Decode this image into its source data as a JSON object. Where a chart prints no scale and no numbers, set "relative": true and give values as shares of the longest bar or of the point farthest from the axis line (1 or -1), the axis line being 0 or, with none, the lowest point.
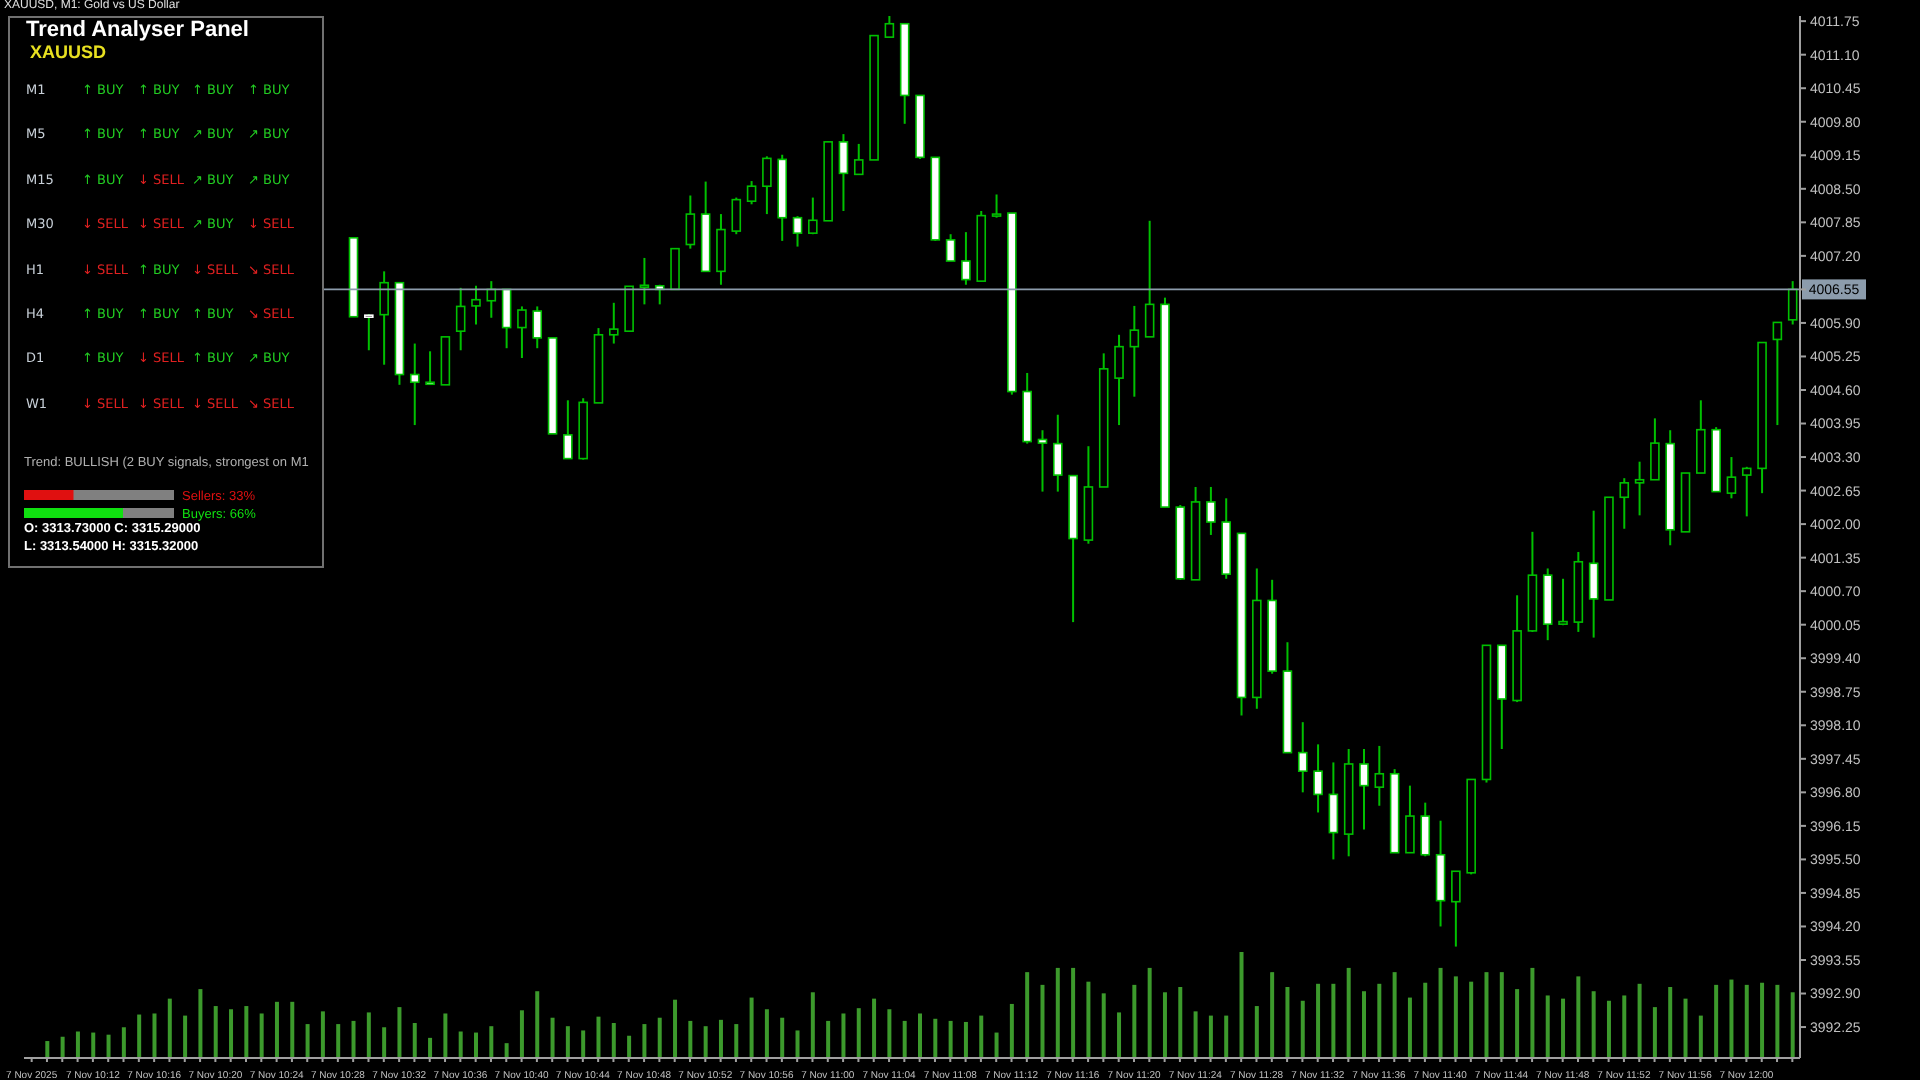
{
  "chart_data": [
    {
      "type": "candlestick",
      "title": "XAUUSD, M1: Gold vs US Dollar",
      "color": "#00c000",
      "colors": [
        null,
        null,
        null,
        null,
        null,
        null,
        null,
        null,
        null,
        null,
        null,
        null,
        null,
        null,
        null,
        null,
        null,
        null,
        null,
        null,
        null,
        "#ffffff",
        "#ffffff",
        "#00c000",
        "#ffffff",
        "#ffffff",
        "#ffffff",
        "#00c000",
        "#00c000",
        "#00c000",
        "#00c000",
        "#ffffff",
        "#00c000",
        "#ffffff",
        "#ffffff",
        "#ffffff",
        "#00c000",
        "#00c000",
        "#00c000",
        "#00c000",
        "#00c000",
        "#ffffff",
        "#00c000",
        "#00c000",
        "#ffffff",
        "#00c000",
        "#00c000",
        "#00c000",
        "#00c000",
        "#ffffff",
        "#ffffff",
        "#00c000",
        "#00c000",
        "#ffffff",
        "#00c000",
        "#00c000",
        "#00c000",
        "#ffffff",
        "#ffffff",
        "#ffffff",
        "#ffffff",
        "#ffffff",
        "#00c000",
        "#00c000",
        "#ffffff",
        "#ffffff",
        "#ffffff",
        "#ffffff",
        "#ffffff",
        "#00c000",
        "#00c000",
        "#00c000",
        "#00c000",
        "#00c000",
        "#ffffff",
        "#ffffff",
        "#00c000",
        "#ffffff",
        "#ffffff",
        "#ffffff",
        "#00c000",
        "#ffffff",
        "#ffffff",
        "#ffffff",
        "#ffffff",
        "#ffffff",
        "#00c000",
        "#ffffff",
        "#00c000",
        "#ffffff",
        "#00c000",
        "#ffffff",
        "#ffffff",
        "#00c000",
        "#00c000",
        "#00c000",
        "#ffffff",
        "#00c000",
        "#00c000",
        "#ffffff",
        "#00c000",
        "#00c000",
        "#ffffff",
        "#00c000",
        "#00c000",
        "#00c000",
        "#00c000",
        "#ffffff",
        "#00c000",
        "#00c000",
        "#ffffff",
        "#00c000",
        "#00c000",
        "#00c000",
        "#00c000",
        "#00c000"
      ],
      "categories": [
        "7 Nov 2025",
        null,
        null,
        null,
        "7 Nov 10:12",
        null,
        null,
        null,
        "7 Nov 10:16",
        null,
        null,
        null,
        "7 Nov 10:20",
        null,
        null,
        null,
        "7 Nov 10:24",
        null,
        null,
        null,
        "7 Nov 10:28",
        null,
        null,
        null,
        "7 Nov 10:32",
        null,
        null,
        null,
        "7 Nov 10:36",
        null,
        null,
        null,
        "7 Nov 10:40",
        null,
        null,
        null,
        "7 Nov 10:44",
        null,
        null,
        null,
        "7 Nov 10:48",
        null,
        null,
        null,
        "7 Nov 10:52",
        null,
        null,
        null,
        "7 Nov 10:56",
        null,
        null,
        null,
        "7 Nov 11:00",
        null,
        null,
        null,
        "7 Nov 11:04",
        null,
        null,
        null,
        "7 Nov 11:08",
        null,
        null,
        null,
        "7 Nov 11:12",
        null,
        null,
        null,
        "7 Nov 11:16",
        null,
        null,
        null,
        "7 Nov 11:20",
        null,
        null,
        null,
        "7 Nov 11:24",
        null,
        null,
        null,
        "7 Nov 11:28",
        null,
        null,
        null,
        "7 Nov 11:32",
        null,
        null,
        null,
        "7 Nov 11:36",
        null,
        null,
        null,
        "7 Nov 11:40",
        null,
        null,
        null,
        "7 Nov 11:44",
        null,
        null,
        null,
        "7 Nov 11:48",
        null,
        null,
        null,
        "7 Nov 11:52",
        null,
        null,
        null,
        "7 Nov 11:56",
        null,
        null,
        null,
        "7 Nov 12:00",
        null,
        null,
        null
      ],
      "ohlc": [
        null,
        null,
        null,
        null,
        null,
        null,
        null,
        null,
        null,
        null,
        null,
        null,
        null,
        null,
        null,
        null,
        null,
        null,
        null,
        null,
        null,
        [
          4007.55,
          4007.55,
          4006.02,
          4006.02
        ],
        [
          4006.05,
          4006.07,
          4005.37,
          4006.05
        ],
        [
          4006.06,
          4006.9,
          4005.09,
          4006.68
        ],
        [
          4006.68,
          4006.68,
          4004.7,
          4004.9
        ],
        [
          4004.9,
          4005.5,
          4003.92,
          4004.75
        ],
        [
          4004.75,
          4005.35,
          4004.7,
          4004.73
        ],
        [
          4004.7,
          4005.63,
          4004.7,
          4005.63
        ],
        [
          4005.74,
          4006.58,
          4005.37,
          4006.22
        ],
        [
          4006.23,
          4006.62,
          4005.87,
          4006.35
        ],
        [
          4006.33,
          4006.71,
          4006.0,
          4006.55
        ],
        [
          4006.55,
          4006.55,
          4005.41,
          4005.81
        ],
        [
          4005.81,
          4006.22,
          4005.22,
          4006.15
        ],
        [
          4006.13,
          4006.22,
          4005.41,
          4005.61
        ],
        [
          4005.61,
          4005.61,
          4003.75,
          4003.75
        ],
        [
          4003.73,
          4004.4,
          4003.27,
          4003.27
        ],
        [
          4003.27,
          4004.44,
          4003.25,
          4004.36
        ],
        [
          4004.35,
          4005.8,
          4004.35,
          4005.67
        ],
        [
          4005.67,
          4006.29,
          4005.5,
          4005.78
        ],
        [
          4005.74,
          4006.61,
          4005.74,
          4006.61
        ],
        [
          4006.61,
          4007.16,
          4006.26,
          4006.63
        ],
        [
          4006.62,
          4006.64,
          4006.26,
          4006.55
        ],
        [
          4006.55,
          4007.34,
          4006.55,
          4007.34
        ],
        [
          4007.42,
          4008.37,
          4007.34,
          4008.01
        ],
        [
          4008.01,
          4008.64,
          4006.9,
          4006.9
        ],
        [
          4006.9,
          4008.01,
          4006.64,
          4007.71
        ],
        [
          4007.68,
          4008.33,
          4007.62,
          4008.29
        ],
        [
          4008.26,
          4008.65,
          4008.2,
          4008.55
        ],
        [
          4008.55,
          4009.13,
          4008.01,
          4009.09
        ],
        [
          4009.07,
          4009.16,
          4007.49,
          4007.94
        ],
        [
          4007.94,
          4007.97,
          4007.38,
          4007.64
        ],
        [
          4007.64,
          4008.33,
          4007.62,
          4007.89
        ],
        [
          4007.88,
          4009.42,
          4007.88,
          4009.41
        ],
        [
          4009.41,
          4009.56,
          4008.07,
          4008.8
        ],
        [
          4008.78,
          4009.37,
          4008.77,
          4009.06
        ],
        [
          4009.06,
          4011.47,
          4009.06,
          4011.47
        ],
        [
          4011.44,
          4011.93,
          4011.44,
          4011.7
        ],
        [
          4011.7,
          4011.7,
          4009.76,
          4010.31
        ],
        [
          4010.31,
          4010.31,
          4009.08,
          4009.11
        ],
        [
          4009.11,
          4009.11,
          4007.49,
          4007.51
        ],
        [
          4007.51,
          4007.62,
          4007.1,
          4007.1
        ],
        [
          4007.1,
          4007.66,
          4006.64,
          4006.74
        ],
        [
          4006.71,
          4008.07,
          4006.71,
          4007.98
        ],
        [
          4007.98,
          4008.39,
          4007.94,
          4008.01
        ],
        [
          4008.03,
          4008.03,
          4004.51,
          4004.57
        ],
        [
          4004.57,
          4004.93,
          4003.56,
          4003.6
        ],
        [
          4003.64,
          4003.82,
          4002.63,
          4003.57
        ],
        [
          4003.56,
          4004.12,
          4002.63,
          4002.95
        ],
        [
          4002.94,
          4002.94,
          4000.1,
          4001.72
        ],
        [
          4001.69,
          4003.51,
          4001.62,
          4002.72
        ],
        [
          4002.72,
          4005.31,
          4002.72,
          4005.01
        ],
        [
          4004.83,
          4005.67,
          4003.92,
          4005.44
        ],
        [
          4005.44,
          4006.23,
          4004.47,
          4005.76
        ],
        [
          4005.63,
          4007.88,
          4005.63,
          4006.26
        ],
        [
          4006.26,
          4006.39,
          4002.33,
          4002.33
        ],
        [
          4002.33,
          4002.37,
          4000.92,
          4000.94
        ],
        [
          4000.92,
          4002.72,
          4000.92,
          4002.43
        ],
        [
          4002.43,
          4002.72,
          4001.79,
          4002.04
        ],
        [
          4002.04,
          4002.5,
          4000.94,
          4001.03
        ],
        [
          4001.82,
          4001.82,
          3998.29,
          3998.64
        ],
        [
          3998.64,
          4001.14,
          3998.42,
          4000.52
        ],
        [
          4000.52,
          4000.92,
          3999.1,
          3999.15
        ],
        [
          3999.15,
          3999.71,
          3997.57,
          3997.57
        ],
        [
          3997.57,
          3998.16,
          3996.8,
          3997.21
        ],
        [
          3997.21,
          3997.73,
          3996.41,
          3996.76
        ],
        [
          3996.76,
          3997.38,
          3995.5,
          3996.02
        ],
        [
          3995.99,
          3997.64,
          3995.56,
          3997.35
        ],
        [
          3997.35,
          3997.64,
          3996.08,
          3996.93
        ],
        [
          3996.9,
          3997.7,
          3996.54,
          3997.16
        ],
        [
          3997.16,
          3997.25,
          3995.63,
          3995.63
        ],
        [
          3995.63,
          3996.93,
          3995.63,
          3996.34
        ],
        [
          3996.34,
          3996.6,
          3995.56,
          3995.59
        ],
        [
          3995.59,
          3996.25,
          3994.2,
          3994.7
        ],
        [
          3994.68,
          3995.27,
          3993.81,
          3995.27
        ],
        [
          3995.24,
          3997.05,
          3995.21,
          3997.05
        ],
        [
          3997.05,
          3999.65,
          3996.99,
          3999.65
        ],
        [
          3999.65,
          3999.65,
          3997.64,
          3998.61
        ],
        [
          3998.58,
          4000.62,
          3998.55,
          3999.93
        ],
        [
          3999.93,
          4001.85,
          3999.91,
          4001.01
        ],
        [
          4001.01,
          4001.14,
          3999.75,
          4000.06
        ],
        [
          4000.06,
          4000.94,
          4000.04,
          4000.11
        ],
        [
          4000.1,
          4001.46,
          3999.91,
          4001.27
        ],
        [
          4001.24,
          4002.26,
          3999.8,
          4000.55
        ],
        [
          4000.53,
          4002.52,
          4000.53,
          4002.52
        ],
        [
          4002.52,
          4002.89,
          4001.91,
          4002.8
        ],
        [
          4002.8,
          4003.21,
          4002.17,
          4002.86
        ],
        [
          4002.86,
          4004.05,
          4002.86,
          4003.57
        ],
        [
          4003.56,
          4003.82,
          4001.59,
          4001.89
        ],
        [
          4001.85,
          4002.99,
          4001.85,
          4002.99
        ],
        [
          4002.99,
          4004.4,
          4002.99,
          4003.83
        ],
        [
          4003.83,
          4003.88,
          4002.63,
          4002.63
        ],
        [
          4002.6,
          4003.3,
          4002.5,
          4002.91
        ],
        [
          4002.95,
          4003.11,
          4002.15,
          4003.08
        ],
        [
          4003.08,
          4005.52,
          4002.6,
          4005.52
        ],
        [
          4005.58,
          4005.91,
          4003.92,
          4005.91
        ],
        [
          4005.96,
          4006.71,
          4005.87,
          4006.55
        ]
      ],
      "ylim": [
        3991.65,
        4011.85
      ],
      "yticks": [
        {
          "value": 4011.75,
          "label": "4011.75"
        },
        {
          "value": 4011.1,
          "label": "4011.10"
        },
        {
          "value": 4010.45,
          "label": "4010.45"
        },
        {
          "value": 4009.8,
          "label": "4009.80"
        },
        {
          "value": 4009.15,
          "label": "4009.15"
        },
        {
          "value": 4008.5,
          "label": "4008.50"
        },
        {
          "value": 4007.85,
          "label": "4007.85"
        },
        {
          "value": 4007.2,
          "label": "4007.20"
        },
        {
          "value": 4006.55,
          "label": null
        },
        {
          "value": 4005.9,
          "label": "4005.90"
        },
        {
          "value": 4005.25,
          "label": "4005.25"
        },
        {
          "value": 4004.6,
          "label": "4004.60"
        },
        {
          "value": 4003.95,
          "label": "4003.95"
        },
        {
          "value": 4003.3,
          "label": "4003.30"
        },
        {
          "value": 4002.65,
          "label": "4002.65"
        },
        {
          "value": 4002,
          "label": "4002.00"
        },
        {
          "value": 4001.35,
          "label": "4001.35"
        },
        {
          "value": 4000.7,
          "label": "4000.70"
        },
        {
          "value": 4000.05,
          "label": "4000.05"
        },
        {
          "value": 3999.4,
          "label": "3999.40"
        },
        {
          "value": 3998.75,
          "label": "3998.75"
        },
        {
          "value": 3998.1,
          "label": "3998.10"
        },
        {
          "value": 3997.45,
          "label": "3997.45"
        },
        {
          "value": 3996.8,
          "label": "3996.80"
        },
        {
          "value": 3996.15,
          "label": "3996.15"
        },
        {
          "value": 3995.5,
          "label": "3995.50"
        },
        {
          "value": 3994.85,
          "label": "3994.85"
        },
        {
          "value": 3994.2,
          "label": "3994.20"
        },
        {
          "value": 3993.55,
          "label": "3993.55"
        },
        {
          "value": 3992.9,
          "label": "3992.90"
        },
        {
          "value": 3992.25,
          "label": "3992.25"
        }
      ],
      "ref_lines": [
        {
          "axis": "y",
          "value": 4006.55,
          "label": "4006.55",
          "color": "#8c9cac"
        }
      ]
    },
    {
      "type": "bar",
      "relative": true,
      "color": "#3c9a2c",
      "categories": [
        null,
        null,
        null,
        null,
        null,
        null,
        null,
        null,
        null,
        null,
        null,
        null,
        null,
        null,
        null,
        null,
        null,
        null,
        null,
        null,
        null,
        null,
        null,
        null,
        null,
        null,
        null,
        null,
        null,
        null,
        null,
        null,
        null,
        null,
        null,
        null,
        null,
        null,
        null,
        null,
        null,
        null,
        null,
        null,
        null,
        null,
        null,
        null,
        null,
        null,
        null,
        null,
        null,
        null,
        null,
        null,
        null,
        null,
        null,
        null,
        null,
        null,
        null,
        null,
        null,
        null,
        null,
        null,
        null,
        null,
        null,
        null,
        null,
        null,
        null,
        null,
        null,
        null,
        null,
        null,
        null,
        null,
        null,
        null,
        null,
        null,
        null,
        null,
        null,
        null,
        null,
        null,
        null,
        null,
        null,
        null,
        null,
        null,
        null,
        null,
        null,
        null,
        null,
        null,
        null,
        null,
        null,
        null,
        null,
        null,
        null,
        null,
        null,
        null,
        null,
        null
      ],
      "values": [
        null,
        0.16,
        0.2,
        0.25,
        0.24,
        0.22,
        0.29,
        0.41,
        0.42,
        0.56,
        0.4,
        0.65,
        0.49,
        0.46,
        0.49,
        0.42,
        0.53,
        0.53,
        0.32,
        0.44,
        0.32,
        0.35,
        0.43,
        0.29,
        0.48,
        0.33,
        0.19,
        0.42,
        0.25,
        0.24,
        0.3,
        0.14,
        0.45,
        0.63,
        0.38,
        0.3,
        0.26,
        0.39,
        0.33,
        0.21,
        0.32,
        0.38,
        0.55,
        0.35,
        0.3,
        0.36,
        0.32,
        0.57,
        0.46,
        0.38,
        0.26,
        0.62,
        0.35,
        0.42,
        0.47,
        0.56,
        0.46,
        0.35,
        0.42,
        0.37,
        0.35,
        0.34,
        0.4,
        0.24,
        0.51,
        0.81,
        0.69,
        0.85,
        0.85,
        0.72,
        0.61,
        0.43,
        0.69,
        0.85,
        0.62,
        0.67,
        0.44,
        0.4,
        0.4,
        1,
        0.49,
        0.81,
        0.67,
        0.54,
        0.7,
        0.7,
        0.85,
        0.63,
        0.7,
        0.81,
        0.57,
        0.71,
        0.85,
        0.77,
        0.72,
        0.81,
        0.81,
        0.65,
        0.85,
        0.59,
        0.56,
        0.77,
        0.63,
        0.54,
        0.59,
        0.7,
        0.48,
        0.67,
        0.56,
        0.4,
        0.69,
        0.74,
        0.69,
        0.71,
        0.69,
        0.62
      ]
    },
    {
      "type": "other",
      "title": "Trend Analyser Panel",
      "subtitle": "XAUUSD",
      "annotations": [
        "M1",
        "↑ BUY",
        "↑ BUY",
        "↑ BUY",
        "↑ BUY",
        "M5",
        "↑ BUY",
        "↑ BUY",
        "↗ BUY",
        "↗ BUY",
        "M15",
        "↑ BUY",
        "↓ SELL",
        "↗ BUY",
        "↗ BUY",
        "M30",
        "↓ SELL",
        "↓ SELL",
        "↗ BUY",
        "↓ SELL",
        "H1",
        "↓ SELL",
        "↑ BUY",
        "↓ SELL",
        "↘ SELL",
        "H4",
        "↑ BUY",
        "↑ BUY",
        "↑ BUY",
        "↘ SELL",
        "D1",
        "↑ BUY",
        "↓ SELL",
        "↑ BUY",
        "↗ BUY",
        "W1",
        "↓ SELL",
        "↓ SELL",
        "↓ SELL",
        "↘ SELL",
        "Trend: BULLISH (2 BUY signals, strongest on M1",
        "O: 3313.73000 C: 3315.29000",
        "L: 3313.54000 H: 3315.32000"
      ],
      "colors": [
        "#c8d0d8",
        "#22cc22",
        "#22cc22",
        "#22cc22",
        "#22cc22",
        "#c8d0d8",
        "#22cc22",
        "#22cc22",
        "#22cc22",
        "#22cc22",
        "#c8d0d8",
        "#22cc22",
        "#e02020",
        "#22cc22",
        "#22cc22",
        "#c8d0d8",
        "#e02020",
        "#e02020",
        "#22cc22",
        "#e02020",
        "#c8d0d8",
        "#e02020",
        "#22cc22",
        "#e02020",
        "#e02020",
        "#c8d0d8",
        "#22cc22",
        "#22cc22",
        "#22cc22",
        "#e02020",
        "#c8d0d8",
        "#22cc22",
        "#e02020",
        "#22cc22",
        "#22cc22",
        "#c8d0d8",
        "#e02020",
        "#e02020",
        "#e02020",
        "#e02020",
        "#b0b0b0",
        "#ffffff",
        "#ffffff"
      ]
    },
    {
      "type": "bar",
      "orientation": "horizontal",
      "categories": [
        null,
        null
      ],
      "values": [
        33,
        66
      ],
      "colors": [
        "#e01010",
        "#10e010"
      ],
      "xlim": [
        0,
        100
      ],
      "value_labels": [
        "Sellers: 33%",
        "Buyers: 66%"
      ]
    }
  ]
}
